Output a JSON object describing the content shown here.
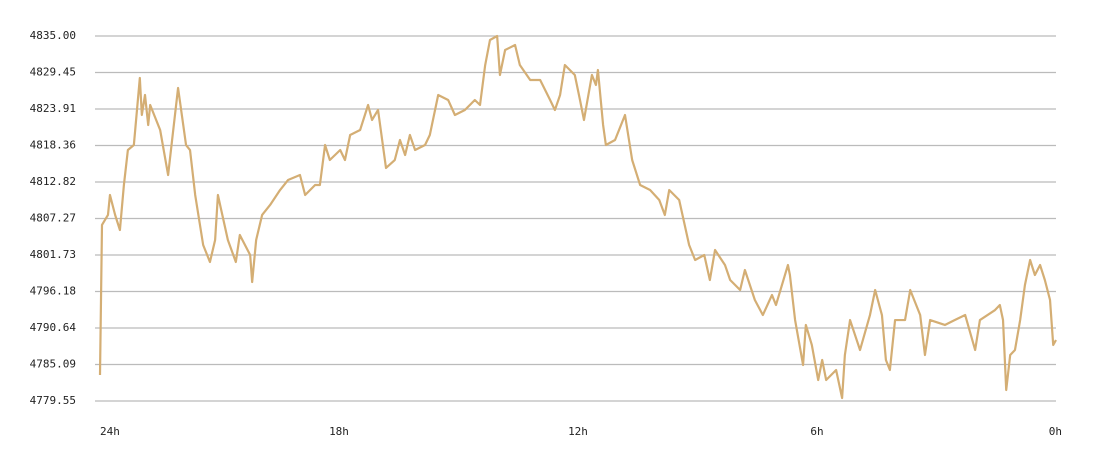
{
  "chart_data": {
    "type": "line",
    "x": [
      24.0,
      23.95,
      23.8,
      23.75,
      23.62,
      23.5,
      23.4,
      23.3,
      23.15,
      23.0,
      22.95,
      22.87,
      22.79,
      22.74,
      22.49,
      22.29,
      22.19,
      22.04,
      21.84,
      21.74,
      21.61,
      21.41,
      21.24,
      21.11,
      21.04,
      20.79,
      20.59,
      20.49,
      20.23,
      20.18,
      20.08,
      19.93,
      19.73,
      19.48,
      19.28,
      18.98,
      18.85,
      18.6,
      18.48,
      18.35,
      18.23,
      17.97,
      17.85,
      17.72,
      17.47,
      17.27,
      17.17,
      17.02,
      16.82,
      16.6,
      16.47,
      16.34,
      16.22,
      16.09,
      15.84,
      15.72,
      15.51,
      15.26,
      15.09,
      14.84,
      14.59,
      14.46,
      14.33,
      14.21,
      14.03,
      13.96,
      13.83,
      13.58,
      13.46,
      13.2,
      12.95,
      12.7,
      12.58,
      12.45,
      12.33,
      12.08,
      11.95,
      11.85,
      11.65,
      11.55,
      11.5,
      11.37,
      11.3,
      11.07,
      10.82,
      10.64,
      10.44,
      10.19,
      9.96,
      9.82,
      9.71,
      9.46,
      9.21,
      9.06,
      8.83,
      8.69,
      8.56,
      8.31,
      8.18,
      7.93,
      7.81,
      7.56,
      7.36,
      7.13,
      7.03,
      6.73,
      6.68,
      6.55,
      6.35,
      6.28,
      6.13,
      5.97,
      5.87,
      5.77,
      5.52,
      5.37,
      5.3,
      5.17,
      4.92,
      4.67,
      4.54,
      4.37,
      4.27,
      4.17,
      4.04,
      3.79,
      3.66,
      3.41,
      3.29,
      3.16,
      2.79,
      2.54,
      2.28,
      2.03,
      1.91,
      1.53,
      1.41,
      1.33,
      1.25,
      1.15,
      1.03,
      0.9,
      0.78,
      0.65,
      0.53,
      0.4,
      0.28,
      0.15,
      0.07,
      0.0
    ],
    "series": [
      {
        "color": "#d4ae74",
        "values": [
          4783.5,
          4806.29,
          4807.81,
          4810.84,
          4807.81,
          4805.53,
          4812.36,
          4817.68,
          4818.44,
          4828.62,
          4823.0,
          4826.04,
          4821.48,
          4824.52,
          4820.72,
          4813.88,
          4819.2,
          4827.1,
          4818.44,
          4817.68,
          4810.84,
          4803.25,
          4800.67,
          4804.01,
          4810.84,
          4804.01,
          4800.67,
          4804.77,
          4801.73,
          4797.63,
          4804.01,
          4807.81,
          4809.33,
          4811.6,
          4813.12,
          4813.88,
          4810.84,
          4812.36,
          4812.36,
          4818.44,
          4816.16,
          4817.68,
          4816.16,
          4819.96,
          4820.72,
          4824.52,
          4822.24,
          4823.76,
          4814.95,
          4816.16,
          4819.2,
          4816.92,
          4819.96,
          4817.68,
          4818.44,
          4819.96,
          4826.04,
          4825.28,
          4823.0,
          4823.76,
          4825.28,
          4824.52,
          4830.59,
          4834.39,
          4835.0,
          4829.08,
          4832.87,
          4833.63,
          4830.59,
          4828.32,
          4828.32,
          4825.28,
          4823.76,
          4826.04,
          4830.59,
          4829.08,
          4825.28,
          4822.24,
          4829.08,
          4827.56,
          4829.83,
          4821.48,
          4818.44,
          4819.2,
          4823.0,
          4816.16,
          4812.36,
          4811.6,
          4810.09,
          4807.81,
          4811.6,
          4810.09,
          4803.25,
          4800.97,
          4801.73,
          4797.93,
          4802.49,
          4800.21,
          4797.93,
          4796.41,
          4799.45,
          4794.89,
          4792.61,
          4795.65,
          4794.13,
          4800.21,
          4798.69,
          4791.85,
          4785.02,
          4791.1,
          4788.06,
          4782.74,
          4785.78,
          4782.74,
          4784.26,
          4780.0,
          4786.54,
          4791.85,
          4787.3,
          4792.61,
          4796.41,
          4792.61,
          4785.78,
          4784.26,
          4791.85,
          4791.85,
          4796.41,
          4792.61,
          4786.54,
          4791.85,
          4791.1,
          4791.85,
          4792.61,
          4787.3,
          4791.85,
          4793.37,
          4794.13,
          4791.85,
          4781.22,
          4786.54,
          4787.3,
          4791.85,
          4797.17,
          4800.97,
          4798.69,
          4800.21,
          4797.93,
          4794.89,
          4788.06,
          4788.82
        ]
      }
    ],
    "xlim": [
      24,
      0
    ],
    "xticks": [
      {
        "value": 24,
        "label": "24h"
      },
      {
        "value": 18,
        "label": "18h"
      },
      {
        "value": 12,
        "label": "12h"
      },
      {
        "value": 6,
        "label": "6h"
      },
      {
        "value": 0,
        "label": "0h"
      }
    ],
    "ylim": [
      4779.55,
      4835
    ],
    "yticks": [
      {
        "value": 4835,
        "label": "4835.00"
      },
      4829.45,
      4823.91,
      4818.36,
      4812.82,
      4807.27,
      4801.73,
      4796.18,
      4790.64,
      4785.09,
      4779.55
    ],
    "grid": true
  }
}
